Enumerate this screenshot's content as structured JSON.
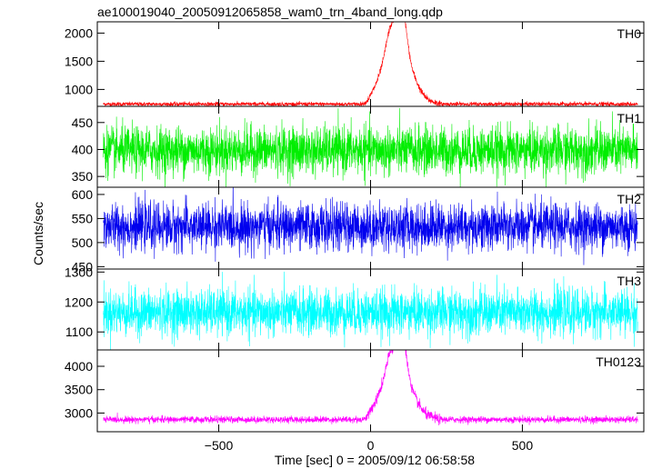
{
  "chart_data": {
    "type": "line",
    "title": "ae100019040_20050912065858_wam0_trn_4band_long.qdp",
    "xlabel": "Time [sec] 0 = 2005/09/12 06:58:58",
    "ylabel": "Counts/sec",
    "xlim": [
      -900,
      900
    ],
    "x_ticks": [
      -500,
      0,
      500
    ],
    "x_tick_labels": [
      "−500",
      "0",
      "500"
    ],
    "grid": false,
    "panels": [
      {
        "name": "TH0",
        "color": "#ff0000",
        "ylim": [
          700,
          2200
        ],
        "yticks": [
          1000,
          1500,
          2000
        ],
        "ytick_labels": [
          "1000",
          "1500",
          "2000"
        ],
        "baseline": 740,
        "noise": 18,
        "burst": [
          {
            "t": 10,
            "h": 180
          },
          {
            "t": 35,
            "h": 420
          },
          {
            "t": 60,
            "h": 900
          },
          {
            "t": 80,
            "h": 750
          },
          {
            "t": 100,
            "h": 1350
          },
          {
            "t": 120,
            "h": 650
          },
          {
            "t": 145,
            "h": 330
          },
          {
            "t": 170,
            "h": 130
          },
          {
            "t": 200,
            "h": 40
          }
        ]
      },
      {
        "name": "TH1",
        "color": "#00ee00",
        "ylim": [
          330,
          480
        ],
        "yticks": [
          350,
          400,
          450
        ],
        "ytick_labels": [
          "350",
          "400",
          "450"
        ],
        "baseline": 398,
        "noise": 22,
        "burst": []
      },
      {
        "name": "TH2",
        "color": "#0000ee",
        "ylim": [
          445,
          615
        ],
        "yticks": [
          450,
          500,
          550,
          600
        ],
        "ytick_labels": [
          "450",
          "500",
          "550",
          "600"
        ],
        "baseline": 533,
        "noise": 24,
        "burst": []
      },
      {
        "name": "TH3",
        "color": "#00ffff",
        "ylim": [
          1040,
          1310
        ],
        "yticks": [
          1100,
          1200,
          1300
        ],
        "ytick_labels": [
          "1100",
          "1200",
          "1300"
        ],
        "baseline": 1165,
        "noise": 38,
        "burst": []
      },
      {
        "name": "TH0123",
        "color": "#ff00ff",
        "ylim": [
          2600,
          4350
        ],
        "yticks": [
          3000,
          3500,
          4000
        ],
        "ytick_labels": [
          "3000",
          "3500",
          "4000"
        ],
        "baseline": 2860,
        "noise": 35,
        "burst": [
          {
            "t": 10,
            "h": 220
          },
          {
            "t": 35,
            "h": 450
          },
          {
            "t": 60,
            "h": 950
          },
          {
            "t": 80,
            "h": 780
          },
          {
            "t": 100,
            "h": 1400
          },
          {
            "t": 120,
            "h": 680
          },
          {
            "t": 145,
            "h": 340
          },
          {
            "t": 170,
            "h": 140
          },
          {
            "t": 200,
            "h": 45
          }
        ]
      }
    ]
  }
}
